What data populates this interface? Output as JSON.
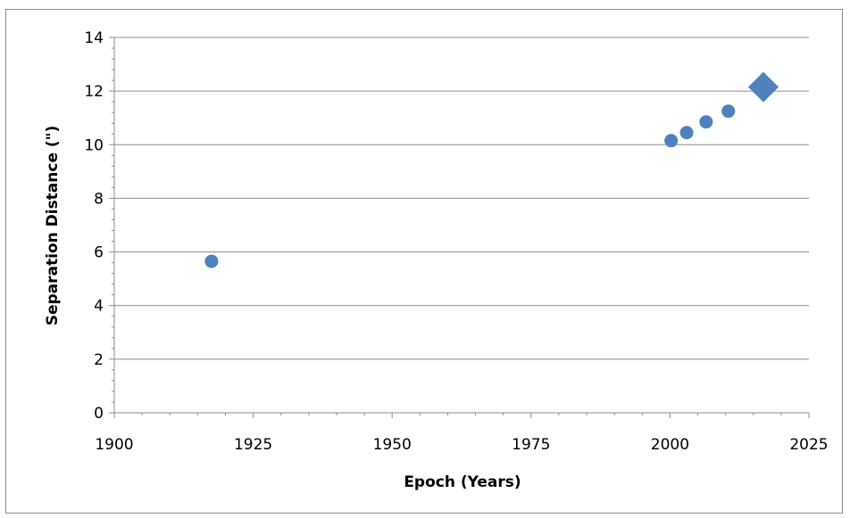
{
  "chart_data": {
    "type": "scatter",
    "title": "",
    "xlabel": "Epoch (Years)",
    "ylabel": "Separation Distance (\")",
    "xlim": [
      1900,
      2025
    ],
    "ylim": [
      0,
      14
    ],
    "x_ticks": [
      "1900",
      "1925",
      "1950",
      "1975",
      "2000",
      "2025"
    ],
    "y_ticks": [
      "0",
      "2",
      "4",
      "6",
      "8",
      "10",
      "12",
      "14"
    ],
    "grid": "horizontal",
    "legend": "none",
    "marker_color": "#4f81bd",
    "series": [
      {
        "marker": "circle",
        "points": [
          {
            "x": 1917.5,
            "y": 5.65
          },
          {
            "x": 2000.2,
            "y": 10.15
          },
          {
            "x": 2003.0,
            "y": 10.45
          },
          {
            "x": 2006.5,
            "y": 10.85
          },
          {
            "x": 2010.5,
            "y": 11.25
          }
        ]
      },
      {
        "marker": "diamond",
        "points": [
          {
            "x": 2016.8,
            "y": 12.15
          }
        ]
      }
    ]
  }
}
